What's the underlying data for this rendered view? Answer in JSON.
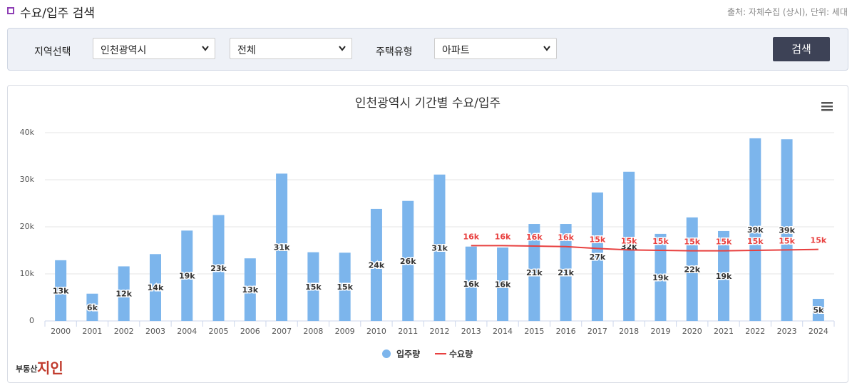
{
  "header": {
    "title": "수요/입주 검색",
    "source": "출처: 자체수집 (상시), 단위: 세대"
  },
  "search": {
    "region_label": "지역선택",
    "region": "인천광역시",
    "district": "전체",
    "type_label": "주택유형",
    "type": "아파트",
    "button": "검색"
  },
  "logo": {
    "small": "부동산",
    "big": "지인"
  },
  "chart_data": {
    "type": "bar",
    "title": "인천광역시 기간별 수요/입주",
    "categories": [
      "2000",
      "2001",
      "2002",
      "2003",
      "2004",
      "2005",
      "2006",
      "2007",
      "2008",
      "2009",
      "2010",
      "2011",
      "2012",
      "2013",
      "2014",
      "2015",
      "2016",
      "2017",
      "2018",
      "2019",
      "2020",
      "2021",
      "2022",
      "2023",
      "2024"
    ],
    "ylim": [
      0,
      40000
    ],
    "yticks": [
      0,
      {
        "value": 10000,
        "label": "10k"
      },
      {
        "value": 20000,
        "label": "20k"
      },
      {
        "value": 30000,
        "label": "30k"
      },
      {
        "value": 40000,
        "label": "40k"
      }
    ],
    "grid": true,
    "series": [
      {
        "name": "입주량",
        "type": "bar",
        "color": "#7cb5ec",
        "values": [
          12900,
          5800,
          11600,
          14200,
          19200,
          22500,
          13300,
          31300,
          14600,
          14500,
          23800,
          25500,
          31100,
          15800,
          15600,
          20600,
          20600,
          27300,
          31700,
          18500,
          22000,
          19100,
          38800,
          38600,
          4700
        ],
        "value_labels": [
          "13k",
          "6k",
          "12k",
          "14k",
          "19k",
          "23k",
          "13k",
          "31k",
          "15k",
          "15k",
          "24k",
          "26k",
          "31k",
          "16k",
          "16k",
          "21k",
          "21k",
          "27k",
          "32k",
          "19k",
          "22k",
          "19k",
          "39k",
          "39k",
          "5k"
        ]
      },
      {
        "name": "수요량",
        "type": "line",
        "color": "#e8403f",
        "values": [
          null,
          null,
          null,
          null,
          null,
          null,
          null,
          null,
          null,
          null,
          null,
          null,
          null,
          16000,
          16000,
          15900,
          15800,
          15400,
          15100,
          15000,
          14900,
          14900,
          15000,
          15100,
          15200
        ],
        "value_labels": [
          null,
          null,
          null,
          null,
          null,
          null,
          null,
          null,
          null,
          null,
          null,
          null,
          null,
          "16k",
          "16k",
          "16k",
          "16k",
          "15k",
          "15k",
          "15k",
          "15k",
          "15k",
          "15k",
          "15k",
          "15k"
        ]
      }
    ]
  }
}
